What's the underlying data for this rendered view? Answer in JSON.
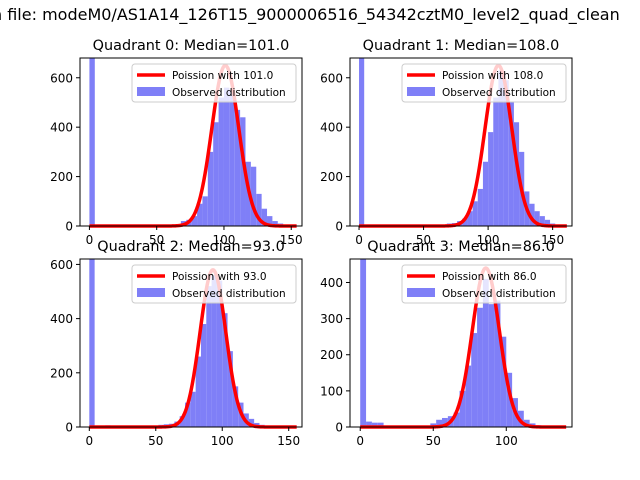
{
  "figure": {
    "suptitle": "n file: modeM0/AS1A14_126T15_9000006516_54342cztM0_level2_quad_clean"
  },
  "colors": {
    "hist": "#7f7ff7",
    "poisson": "#ff0000"
  },
  "chart_data": [
    {
      "type": "bar",
      "title": "Quadrant 0: Median=101.0",
      "median": 101.0,
      "xlim": [
        -7,
        158
      ],
      "ylim": [
        0,
        680
      ],
      "xticks": [
        0,
        50,
        100,
        150
      ],
      "yticks": [
        0,
        200,
        400,
        600
      ],
      "legend": {
        "position": "top-right",
        "entries": [
          "Poission with 101.0",
          "Observed distribution"
        ]
      },
      "poisson_peak": 650,
      "bin_width": 4,
      "bins": [
        {
          "x": 0,
          "h": 680
        },
        {
          "x": 4,
          "h": 4
        },
        {
          "x": 8,
          "h": 3
        },
        {
          "x": 12,
          "h": 4
        },
        {
          "x": 16,
          "h": 2
        },
        {
          "x": 56,
          "h": 4
        },
        {
          "x": 60,
          "h": 6
        },
        {
          "x": 64,
          "h": 8
        },
        {
          "x": 68,
          "h": 20
        },
        {
          "x": 72,
          "h": 25
        },
        {
          "x": 76,
          "h": 40
        },
        {
          "x": 80,
          "h": 90
        },
        {
          "x": 84,
          "h": 120
        },
        {
          "x": 88,
          "h": 300
        },
        {
          "x": 92,
          "h": 420
        },
        {
          "x": 96,
          "h": 520
        },
        {
          "x": 100,
          "h": 560
        },
        {
          "x": 104,
          "h": 550
        },
        {
          "x": 108,
          "h": 470
        },
        {
          "x": 112,
          "h": 440
        },
        {
          "x": 116,
          "h": 260
        },
        {
          "x": 120,
          "h": 240
        },
        {
          "x": 124,
          "h": 130
        },
        {
          "x": 128,
          "h": 70
        },
        {
          "x": 132,
          "h": 40
        },
        {
          "x": 136,
          "h": 20
        },
        {
          "x": 140,
          "h": 10
        },
        {
          "x": 144,
          "h": 5
        }
      ]
    },
    {
      "type": "bar",
      "title": "Quadrant 1: Median=108.0",
      "median": 108.0,
      "xlim": [
        -7,
        165
      ],
      "ylim": [
        0,
        680
      ],
      "xticks": [
        0,
        50,
        100,
        150
      ],
      "yticks": [
        0,
        200,
        400,
        600
      ],
      "legend": {
        "position": "top-right",
        "entries": [
          "Poission with 108.0",
          "Observed distribution"
        ]
      },
      "poisson_peak": 650,
      "bin_width": 4,
      "bins": [
        {
          "x": 0,
          "h": 680
        },
        {
          "x": 4,
          "h": 3
        },
        {
          "x": 8,
          "h": 3
        },
        {
          "x": 12,
          "h": 2
        },
        {
          "x": 64,
          "h": 5
        },
        {
          "x": 68,
          "h": 10
        },
        {
          "x": 72,
          "h": 12
        },
        {
          "x": 76,
          "h": 20
        },
        {
          "x": 80,
          "h": 30
        },
        {
          "x": 84,
          "h": 60
        },
        {
          "x": 88,
          "h": 100
        },
        {
          "x": 92,
          "h": 150
        },
        {
          "x": 96,
          "h": 260
        },
        {
          "x": 100,
          "h": 380
        },
        {
          "x": 104,
          "h": 520
        },
        {
          "x": 108,
          "h": 630
        },
        {
          "x": 112,
          "h": 590
        },
        {
          "x": 116,
          "h": 500
        },
        {
          "x": 120,
          "h": 420
        },
        {
          "x": 124,
          "h": 300
        },
        {
          "x": 128,
          "h": 140
        },
        {
          "x": 132,
          "h": 90
        },
        {
          "x": 136,
          "h": 60
        },
        {
          "x": 140,
          "h": 40
        },
        {
          "x": 144,
          "h": 25
        },
        {
          "x": 148,
          "h": 10
        },
        {
          "x": 152,
          "h": 5
        }
      ]
    },
    {
      "type": "bar",
      "title": "Quadrant 2: Median=93.0",
      "median": 93.0,
      "xlim": [
        -7,
        160
      ],
      "ylim": [
        0,
        620
      ],
      "xticks": [
        0,
        50,
        100,
        150
      ],
      "yticks": [
        0,
        200,
        400,
        600
      ],
      "legend": {
        "position": "top-right",
        "entries": [
          "Poission with 93.0",
          "Observed distribution"
        ]
      },
      "poisson_peak": 580,
      "bin_width": 4,
      "bins": [
        {
          "x": 0,
          "h": 620
        },
        {
          "x": 4,
          "h": 3
        },
        {
          "x": 8,
          "h": 5
        },
        {
          "x": 12,
          "h": 6
        },
        {
          "x": 16,
          "h": 5
        },
        {
          "x": 48,
          "h": 4
        },
        {
          "x": 52,
          "h": 8
        },
        {
          "x": 56,
          "h": 10
        },
        {
          "x": 60,
          "h": 12
        },
        {
          "x": 64,
          "h": 20
        },
        {
          "x": 68,
          "h": 40
        },
        {
          "x": 72,
          "h": 90
        },
        {
          "x": 76,
          "h": 130
        },
        {
          "x": 80,
          "h": 260
        },
        {
          "x": 84,
          "h": 380
        },
        {
          "x": 88,
          "h": 520
        },
        {
          "x": 92,
          "h": 560
        },
        {
          "x": 96,
          "h": 540
        },
        {
          "x": 100,
          "h": 420
        },
        {
          "x": 104,
          "h": 280
        },
        {
          "x": 108,
          "h": 150
        },
        {
          "x": 112,
          "h": 90
        },
        {
          "x": 116,
          "h": 50
        },
        {
          "x": 120,
          "h": 30
        },
        {
          "x": 124,
          "h": 15
        },
        {
          "x": 128,
          "h": 8
        },
        {
          "x": 132,
          "h": 4
        }
      ]
    },
    {
      "type": "bar",
      "title": "Quadrant 3: Median=86.0",
      "median": 86.0,
      "xlim": [
        -7,
        145
      ],
      "ylim": [
        0,
        465
      ],
      "xticks": [
        0,
        50,
        100
      ],
      "yticks": [
        0,
        100,
        200,
        300,
        400
      ],
      "legend": {
        "position": "top-right",
        "entries": [
          "Poission with 86.0",
          "Observed distribution"
        ]
      },
      "poisson_peak": 440,
      "bin_width": 4,
      "bins": [
        {
          "x": 0,
          "h": 465
        },
        {
          "x": 4,
          "h": 15
        },
        {
          "x": 8,
          "h": 12
        },
        {
          "x": 12,
          "h": 12
        },
        {
          "x": 48,
          "h": 10
        },
        {
          "x": 52,
          "h": 20
        },
        {
          "x": 56,
          "h": 25
        },
        {
          "x": 60,
          "h": 30
        },
        {
          "x": 64,
          "h": 40
        },
        {
          "x": 68,
          "h": 100
        },
        {
          "x": 72,
          "h": 170
        },
        {
          "x": 76,
          "h": 260
        },
        {
          "x": 80,
          "h": 330
        },
        {
          "x": 84,
          "h": 410
        },
        {
          "x": 88,
          "h": 340
        },
        {
          "x": 92,
          "h": 350
        },
        {
          "x": 96,
          "h": 250
        },
        {
          "x": 100,
          "h": 150
        },
        {
          "x": 104,
          "h": 80
        },
        {
          "x": 108,
          "h": 45
        },
        {
          "x": 112,
          "h": 20
        },
        {
          "x": 116,
          "h": 10
        },
        {
          "x": 120,
          "h": 5
        }
      ]
    }
  ]
}
